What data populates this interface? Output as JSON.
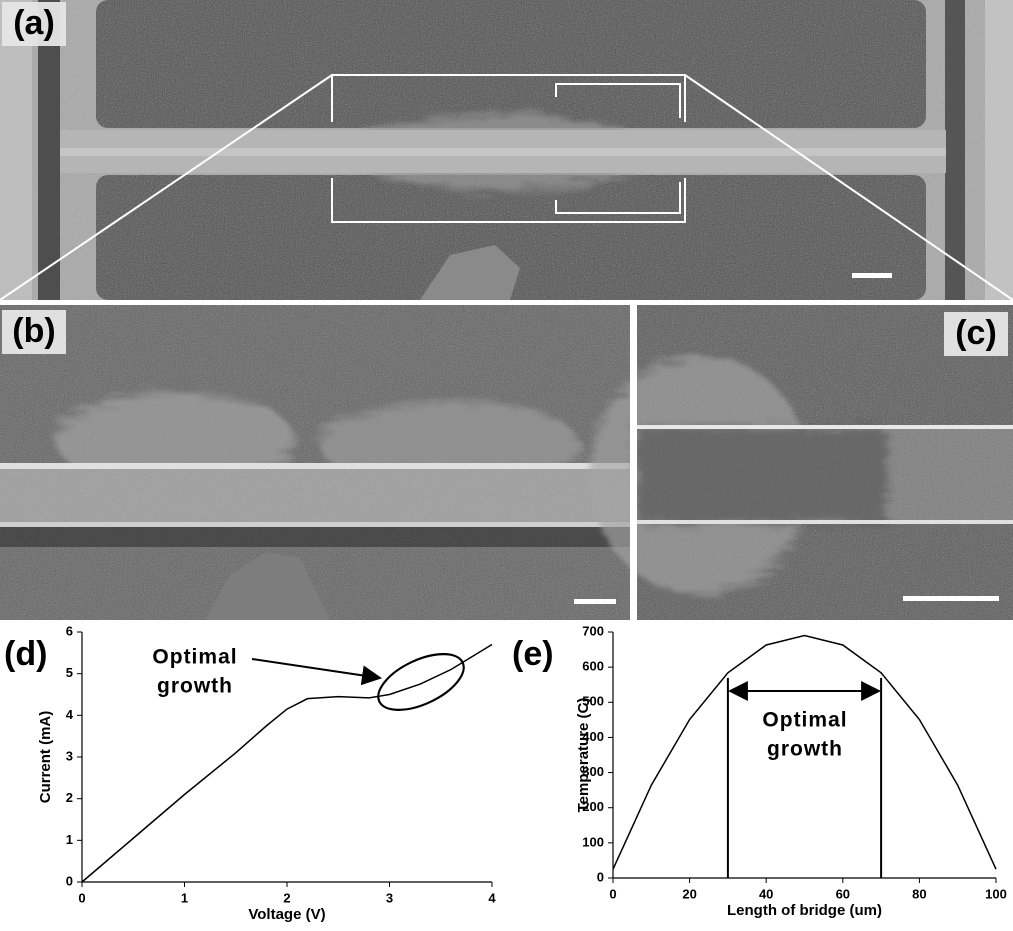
{
  "images": [
    {
      "label": "(a)"
    },
    {
      "label": "(b)"
    },
    {
      "label": "(c)"
    }
  ],
  "chart_data": [
    {
      "type": "line",
      "panel_label": "(d)",
      "x": [
        0,
        0.5,
        1,
        1.5,
        1.8,
        2.0,
        2.2,
        2.5,
        2.8,
        3.0,
        3.3,
        3.6,
        4.0
      ],
      "values": [
        0,
        1.05,
        2.1,
        3.1,
        3.75,
        4.15,
        4.4,
        4.45,
        4.42,
        4.5,
        4.75,
        5.1,
        5.7
      ],
      "color": "#000000",
      "xlim": [
        0,
        4
      ],
      "xticks": [
        0,
        1,
        2,
        3,
        4
      ],
      "ylim": [
        0,
        6
      ],
      "yticks": [
        0,
        1,
        2,
        3,
        4,
        5,
        6
      ],
      "xlabel": "Voltage (V)",
      "ylabel": "Current (mA)",
      "annotation_lines": [
        "Optimal",
        "growth"
      ]
    },
    {
      "type": "line",
      "panel_label": "(e)",
      "x": [
        0,
        10,
        20,
        30,
        40,
        50,
        60,
        70,
        80,
        90,
        100
      ],
      "values": [
        25,
        264,
        451,
        584,
        663,
        690,
        663,
        584,
        451,
        264,
        25
      ],
      "color": "#000000",
      "xlim": [
        0,
        100
      ],
      "xticks": [
        0,
        20,
        40,
        60,
        80,
        100
      ],
      "ylim": [
        0,
        700
      ],
      "yticks": [
        0,
        100,
        200,
        300,
        400,
        500,
        600,
        700
      ],
      "xlabel": "Length of bridge (um)",
      "ylabel": "Temperature (C)",
      "vlines": [
        30,
        70
      ],
      "annotation_lines": [
        "Optimal",
        "growth"
      ]
    }
  ]
}
